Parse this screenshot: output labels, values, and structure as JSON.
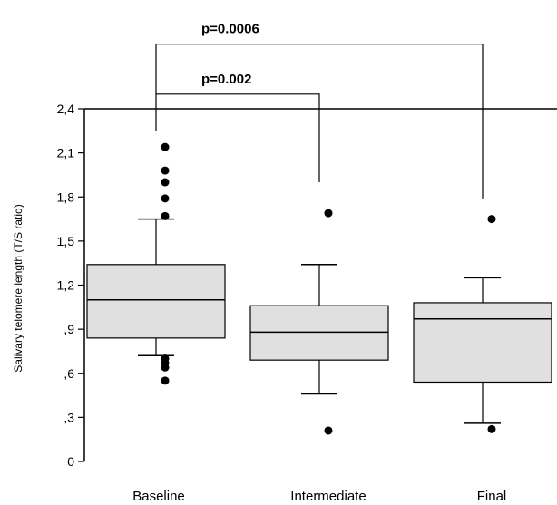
{
  "chart_data": {
    "type": "boxplot",
    "ylabel": "Salivary telomere length (T/S ratio)",
    "ylim": [
      0,
      2.4
    ],
    "yticks": [
      {
        "value": 0,
        "label": "0"
      },
      {
        "value": 0.3,
        "label": ",3"
      },
      {
        "value": 0.6,
        "label": ",6"
      },
      {
        "value": 0.9,
        "label": ",9"
      },
      {
        "value": 1.2,
        "label": "1,2"
      },
      {
        "value": 1.5,
        "label": "1,5"
      },
      {
        "value": 1.8,
        "label": "1,8"
      },
      {
        "value": 2.1,
        "label": "2,1"
      },
      {
        "value": 2.4,
        "label": "2,4"
      }
    ],
    "categories": [
      "Baseline",
      "Intermediate",
      "Final"
    ],
    "boxes": [
      {
        "category": "Baseline",
        "whisker_low": 0.72,
        "q1": 0.84,
        "median": 1.1,
        "q3": 1.34,
        "whisker_high": 1.65,
        "outliers": [
          2.14,
          1.98,
          1.9,
          1.79,
          1.67,
          0.7,
          0.67,
          0.64,
          0.55
        ]
      },
      {
        "category": "Intermediate",
        "whisker_low": 0.46,
        "q1": 0.69,
        "median": 0.88,
        "q3": 1.06,
        "whisker_high": 1.34,
        "outliers": [
          1.69,
          0.21
        ]
      },
      {
        "category": "Final",
        "whisker_low": 0.26,
        "q1": 0.54,
        "median": 0.97,
        "q3": 1.08,
        "whisker_high": 1.25,
        "outliers": [
          1.65,
          0.22
        ]
      }
    ],
    "annotations": [
      {
        "text": "p=0.0006",
        "from": "Baseline",
        "to": "Final",
        "level": 2.84
      },
      {
        "text": "p=0.002",
        "from": "Baseline",
        "to": "Intermediate",
        "level": 2.5
      }
    ],
    "box_fill": "#e0e0e0",
    "line_color": "#000000",
    "grid": false
  }
}
